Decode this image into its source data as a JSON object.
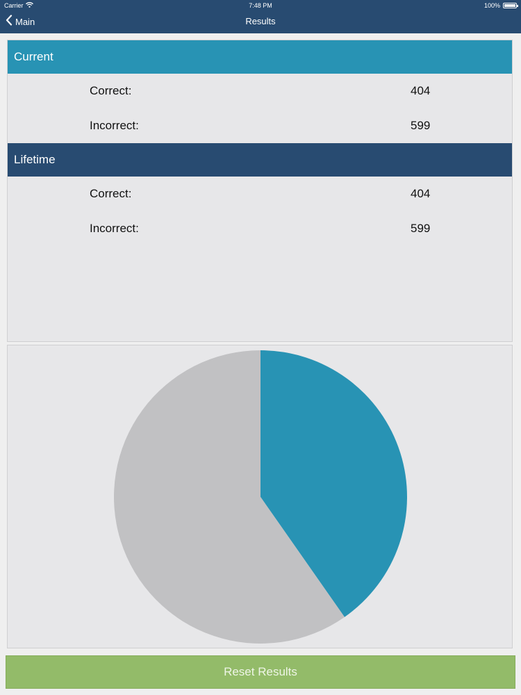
{
  "status_bar": {
    "carrier": "Carrier",
    "time": "7:48 PM",
    "battery": "100%"
  },
  "nav": {
    "back_label": "Main",
    "title": "Results"
  },
  "current": {
    "title": "Current",
    "correct_label": "Correct:",
    "correct_value": "404",
    "incorrect_label": "Incorrect:",
    "incorrect_value": "599"
  },
  "lifetime": {
    "title": "Lifetime",
    "correct_label": "Correct:",
    "correct_value": "404",
    "incorrect_label": "Incorrect:",
    "incorrect_value": "599"
  },
  "chart_data": {
    "type": "pie",
    "categories": [
      "Correct",
      "Incorrect"
    ],
    "values": [
      404,
      599
    ],
    "colors": [
      "#2893b4",
      "#c1c1c3"
    ]
  },
  "actions": {
    "reset_label": "Reset Results"
  },
  "colors": {
    "nav_bar": "#284b71",
    "current_header": "#2893b4",
    "lifetime_header": "#284b71",
    "reset_button": "#93bb69"
  }
}
